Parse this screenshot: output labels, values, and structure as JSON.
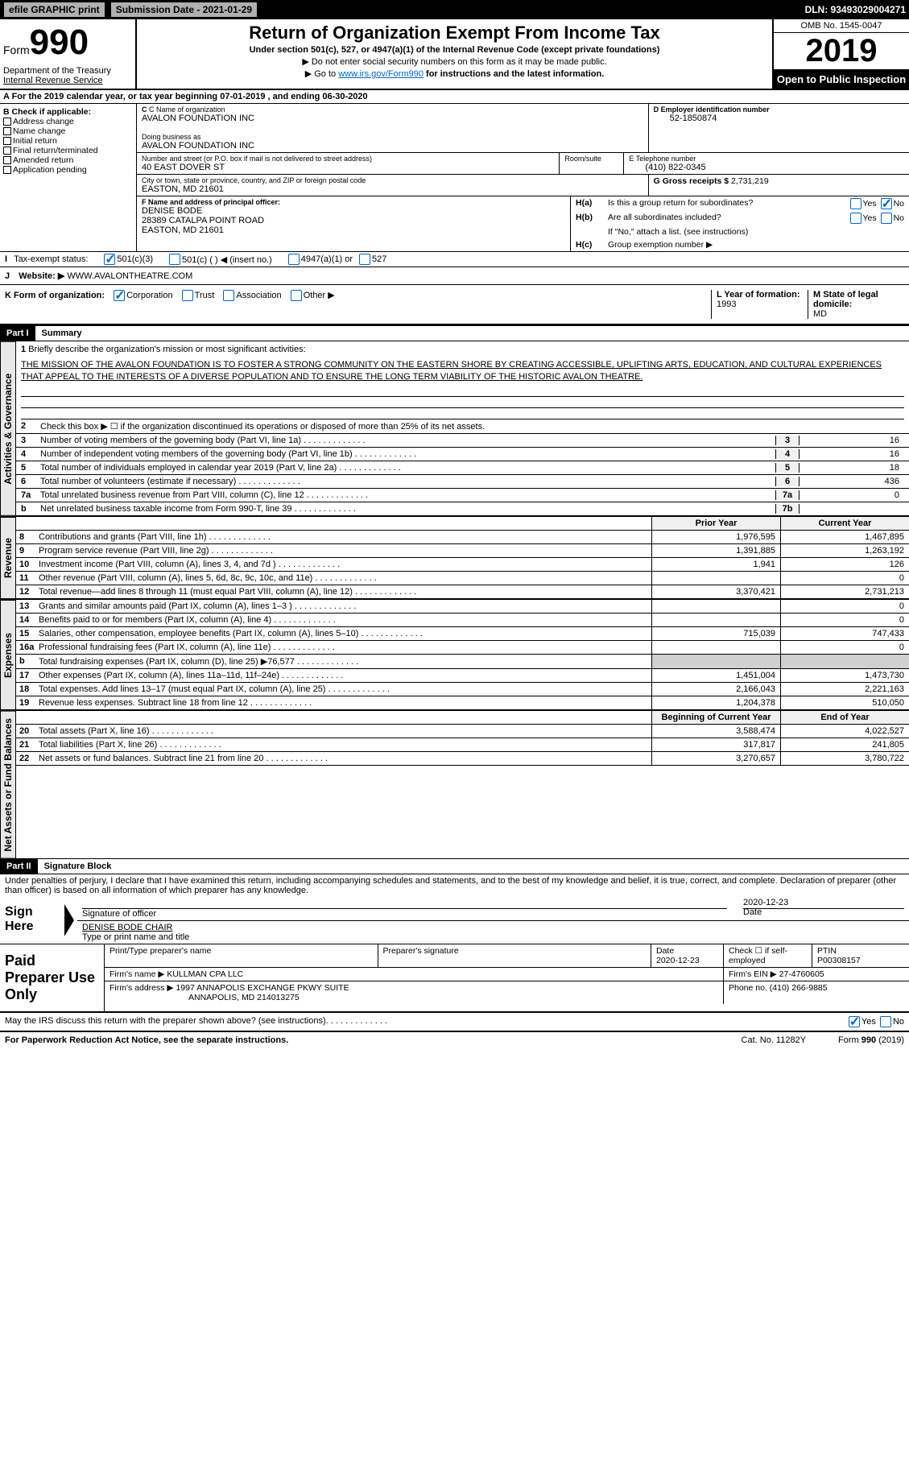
{
  "top_bar": {
    "efile": "efile GRAPHIC print",
    "submission_label": "Submission Date - 2021-01-29",
    "dln": "DLN: 93493029004271"
  },
  "header": {
    "form_word": "Form",
    "form_number": "990",
    "department": "Department of the Treasury",
    "irs": "Internal Revenue Service",
    "title": "Return of Organization Exempt From Income Tax",
    "subtitle": "Under section 501(c), 527, or 4947(a)(1) of the Internal Revenue Code (except private foundations)",
    "note1": "▶ Do not enter social security numbers on this form as it may be made public.",
    "note2_prefix": "▶ Go to ",
    "note2_link": "www.irs.gov/Form990",
    "note2_suffix": " for instructions and the latest information.",
    "omb": "OMB No. 1545-0047",
    "year": "2019",
    "open_inspection": "Open to Public Inspection"
  },
  "section_a": {
    "text_prefix": "A For the 2019 calendar year, or tax year beginning ",
    "begin": "07-01-2019",
    "middle": " , and ending ",
    "end": "06-30-2020"
  },
  "check_b": {
    "label": "B Check if applicable:",
    "options": [
      "Address change",
      "Name change",
      "Initial return",
      "Final return/terminated",
      "Amended return",
      "Application pending"
    ]
  },
  "org": {
    "c_label": "C Name of organization",
    "name": "AVALON FOUNDATION INC",
    "dba_label": "Doing business as",
    "dba": "AVALON FOUNDATION INC",
    "addr_label": "Number and street (or P.O. box if mail is not delivered to street address)",
    "addr": "40 EAST DOVER ST",
    "room_label": "Room/suite",
    "room": "",
    "city_label": "City or town, state or province, country, and ZIP or foreign postal code",
    "city": "EASTON, MD  21601"
  },
  "right_info": {
    "d_label": "D Employer identification number",
    "ein": "52-1850874",
    "e_label": "E Telephone number",
    "phone": "(410) 822-0345",
    "g_label": "G Gross receipts $ ",
    "gross": "2,731,219"
  },
  "officer": {
    "f_label": "F Name and address of principal officer:",
    "name": "DENISE BODE",
    "addr": "28389 CATALPA POINT ROAD",
    "city": "EASTON, MD  21601"
  },
  "h": {
    "ha_label": "H(a)",
    "ha_text": "Is this a group return for subordinates?",
    "hb_label": "H(b)",
    "hb_text": "Are all subordinates included?",
    "hb_note": "If \"No,\" attach a list. (see instructions)",
    "hc_label": "H(c)",
    "hc_text": "Group exemption number ▶",
    "yes": "Yes",
    "no": "No"
  },
  "tax_exempt": {
    "i_label": "I",
    "text": "Tax-exempt status:",
    "opt1": "501(c)(3)",
    "opt2": "501(c) (  ) ◀ (insert no.)",
    "opt3": "4947(a)(1) or",
    "opt4": "527"
  },
  "website": {
    "j_label": "J",
    "label": "Website: ▶",
    "value": "WWW.AVALONTHEATRE.COM"
  },
  "k_row": {
    "k_label": "K Form of organization:",
    "opts": [
      "Corporation",
      "Trust",
      "Association",
      "Other ▶"
    ],
    "l_label": "L Year of formation: ",
    "l_value": "1993",
    "m_label": "M State of legal domicile:",
    "m_value": "MD"
  },
  "part1": {
    "label": "Part I",
    "title": "Summary"
  },
  "mission": {
    "num": "1",
    "label": "Briefly describe the organization's mission or most significant activities:",
    "text": "THE MISSION OF THE AVALON FOUNDATION IS TO FOSTER A STRONG COMMUNITY ON THE EASTERN SHORE BY CREATING ACCESSIBLE, UPLIFTING ARTS, EDUCATION, AND CULTURAL EXPERIENCES THAT APPEAL TO THE INTERESTS OF A DIVERSE POPULATION AND TO ENSURE THE LONG TERM VIABILITY OF THE HISTORIC AVALON THEATRE."
  },
  "summary_lines": [
    {
      "num": "2",
      "text": "Check this box ▶ ☐ if the organization discontinued its operations or disposed of more than 25% of its net assets.",
      "box": "",
      "val": ""
    },
    {
      "num": "3",
      "text": "Number of voting members of the governing body (Part VI, line 1a)",
      "box": "3",
      "val": "16"
    },
    {
      "num": "4",
      "text": "Number of independent voting members of the governing body (Part VI, line 1b)",
      "box": "4",
      "val": "16"
    },
    {
      "num": "5",
      "text": "Total number of individuals employed in calendar year 2019 (Part V, line 2a)",
      "box": "5",
      "val": "18"
    },
    {
      "num": "6",
      "text": "Total number of volunteers (estimate if necessary)",
      "box": "6",
      "val": "436"
    },
    {
      "num": "7a",
      "text": "Total unrelated business revenue from Part VIII, column (C), line 12",
      "box": "7a",
      "val": "0"
    },
    {
      "num": "b",
      "text": "Net unrelated business taxable income from Form 990-T, line 39",
      "box": "7b",
      "val": ""
    }
  ],
  "vert_labels": {
    "gov": "Activities & Governance",
    "rev": "Revenue",
    "exp": "Expenses",
    "net": "Net Assets or Fund Balances"
  },
  "table_header": {
    "prior": "Prior Year",
    "current": "Current Year"
  },
  "revenue_rows": [
    {
      "num": "8",
      "text": "Contributions and grants (Part VIII, line 1h)",
      "prior": "1,976,595",
      "current": "1,467,895"
    },
    {
      "num": "9",
      "text": "Program service revenue (Part VIII, line 2g)",
      "prior": "1,391,885",
      "current": "1,263,192"
    },
    {
      "num": "10",
      "text": "Investment income (Part VIII, column (A), lines 3, 4, and 7d )",
      "prior": "1,941",
      "current": "126"
    },
    {
      "num": "11",
      "text": "Other revenue (Part VIII, column (A), lines 5, 6d, 8c, 9c, 10c, and 11e)",
      "prior": "",
      "current": "0"
    },
    {
      "num": "12",
      "text": "Total revenue—add lines 8 through 11 (must equal Part VIII, column (A), line 12)",
      "prior": "3,370,421",
      "current": "2,731,213"
    }
  ],
  "expense_rows": [
    {
      "num": "13",
      "text": "Grants and similar amounts paid (Part IX, column (A), lines 1–3 )",
      "prior": "",
      "current": "0"
    },
    {
      "num": "14",
      "text": "Benefits paid to or for members (Part IX, column (A), line 4)",
      "prior": "",
      "current": "0"
    },
    {
      "num": "15",
      "text": "Salaries, other compensation, employee benefits (Part IX, column (A), lines 5–10)",
      "prior": "715,039",
      "current": "747,433"
    },
    {
      "num": "16a",
      "text": "Professional fundraising fees (Part IX, column (A), line 11e)",
      "prior": "",
      "current": "0"
    },
    {
      "num": "b",
      "text": "Total fundraising expenses (Part IX, column (D), line 25) ▶76,577",
      "prior": "SHADED",
      "current": "SHADED"
    },
    {
      "num": "17",
      "text": "Other expenses (Part IX, column (A), lines 11a–11d, 11f–24e)",
      "prior": "1,451,004",
      "current": "1,473,730"
    },
    {
      "num": "18",
      "text": "Total expenses. Add lines 13–17 (must equal Part IX, column (A), line 25)",
      "prior": "2,166,043",
      "current": "2,221,163"
    },
    {
      "num": "19",
      "text": "Revenue less expenses. Subtract line 18 from line 12",
      "prior": "1,204,378",
      "current": "510,050"
    }
  ],
  "net_header": {
    "prior": "Beginning of Current Year",
    "current": "End of Year"
  },
  "net_rows": [
    {
      "num": "20",
      "text": "Total assets (Part X, line 16)",
      "prior": "3,588,474",
      "current": "4,022,527"
    },
    {
      "num": "21",
      "text": "Total liabilities (Part X, line 26)",
      "prior": "317,817",
      "current": "241,805"
    },
    {
      "num": "22",
      "text": "Net assets or fund balances. Subtract line 21 from line 20",
      "prior": "3,270,657",
      "current": "3,780,722"
    }
  ],
  "part2": {
    "label": "Part II",
    "title": "Signature Block"
  },
  "declaration": "Under penalties of perjury, I declare that I have examined this return, including accompanying schedules and statements, and to the best of my knowledge and belief, it is true, correct, and complete. Declaration of preparer (other than officer) is based on all information of which preparer has any knowledge.",
  "sign": {
    "label": "Sign Here",
    "sig_of_officer": "Signature of officer",
    "date": "2020-12-23",
    "date_label": "Date",
    "name_title": "DENISE BODE CHAIR",
    "type_label": "Type or print name and title"
  },
  "preparer": {
    "label": "Paid Preparer Use Only",
    "print_name": "Print/Type preparer's name",
    "sig": "Preparer's signature",
    "date_label": "Date",
    "date": "2020-12-23",
    "check_label": "Check ☐ if self-employed",
    "ptin_label": "PTIN",
    "ptin": "P00308157",
    "firm_name_label": "Firm's name     ▶",
    "firm_name": "KULLMAN CPA LLC",
    "firm_ein_label": "Firm's EIN ▶",
    "firm_ein": "27-4760605",
    "firm_addr_label": "Firm's address ▶",
    "firm_addr": "1997 ANNAPOLIS EXCHANGE PKWY SUITE",
    "firm_addr2": "ANNAPOLIS, MD  214013275",
    "phone_label": "Phone no. ",
    "phone": "(410) 266-9885"
  },
  "footer": {
    "discuss": "May the IRS discuss this return with the preparer shown above? (see instructions)",
    "yes": "Yes",
    "no": "No",
    "paperwork": "For Paperwork Reduction Act Notice, see the separate instructions.",
    "cat": "Cat. No. 11282Y",
    "form": "Form 990 (2019)"
  }
}
